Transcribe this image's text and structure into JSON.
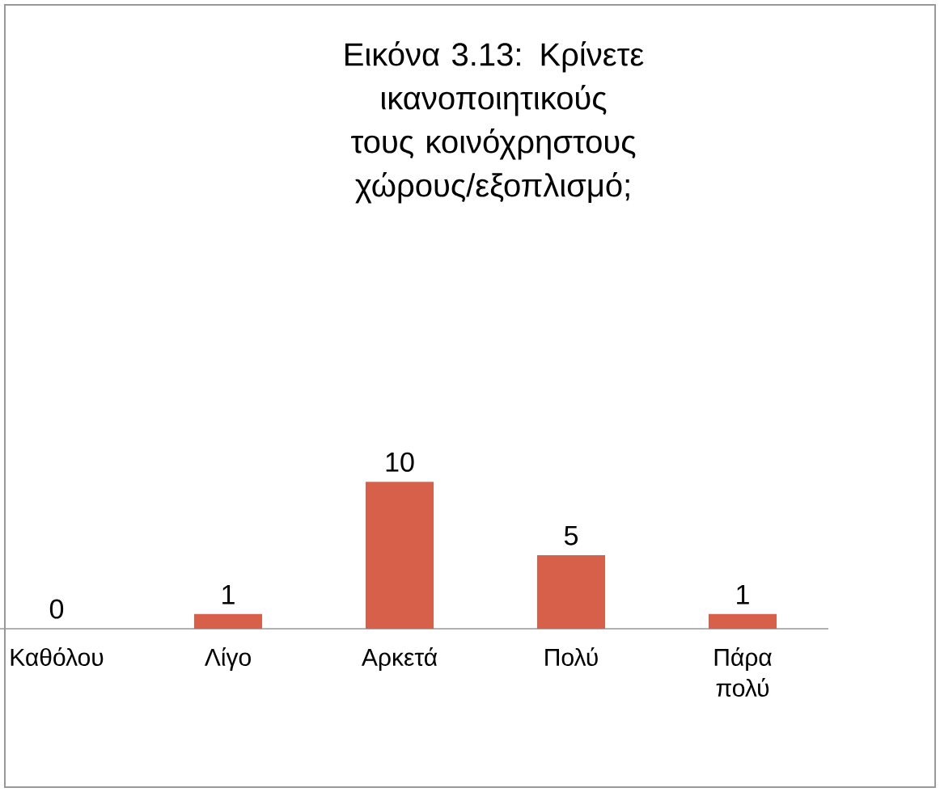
{
  "chart_data": {
    "type": "bar",
    "title": "Εικόνα 3.13: Κρίνετε ικανοποιητικούς τους κοινόχρηστους χώρους/εξοπλισμό;",
    "categories": [
      "Καθόλου",
      "Λίγο",
      "Αρκετά",
      "Πολύ",
      "Πάρα πολύ"
    ],
    "values": [
      0,
      1,
      10,
      5,
      1
    ],
    "color": "#d6604a",
    "data_labels": true
  }
}
